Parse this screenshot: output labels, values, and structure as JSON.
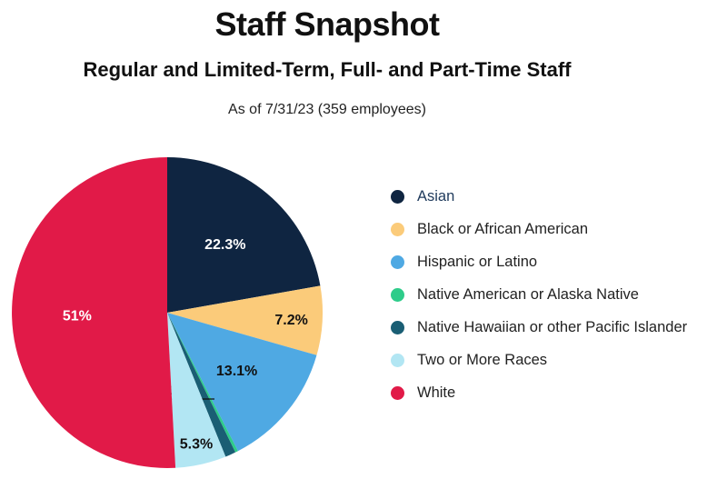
{
  "title": "Staff Snapshot",
  "subtitle": "Regular and Limited-Term, Full- and Part-Time Staff",
  "as_of": "As of 7/31/23 (359 employees)",
  "chart_data": {
    "type": "pie",
    "title": "Staff Snapshot",
    "subtitle": "Regular and Limited-Term, Full- and Part-Time Staff",
    "legend_position": "right",
    "slices": [
      {
        "label": "Asian",
        "value": 22.3,
        "display": "22.3%",
        "color": "#0f2541",
        "label_color": "#ffffff"
      },
      {
        "label": "Black or African American",
        "value": 7.2,
        "display": "7.2%",
        "color": "#fbcb7a",
        "label_color": "#111111"
      },
      {
        "label": "Hispanic or Latino",
        "value": 13.1,
        "display": "13.1%",
        "color": "#4fa9e3",
        "label_color": "#111111"
      },
      {
        "label": "Native American or Alaska Native",
        "value": 0.3,
        "display": "",
        "color": "#2ecc8a",
        "label_color": "#111111"
      },
      {
        "label": "Native Hawaiian or other Pacific Islander",
        "value": 1.1,
        "display": "1.1%",
        "color": "#1a5e74",
        "label_color": "#111111"
      },
      {
        "label": "Two or More Races",
        "value": 5.3,
        "display": "5.3%",
        "color": "#b2e6f3",
        "label_color": "#111111"
      },
      {
        "label": "White",
        "value": 51,
        "display": "51%",
        "color": "#e11a48",
        "label_color": "#ffffff"
      }
    ]
  }
}
